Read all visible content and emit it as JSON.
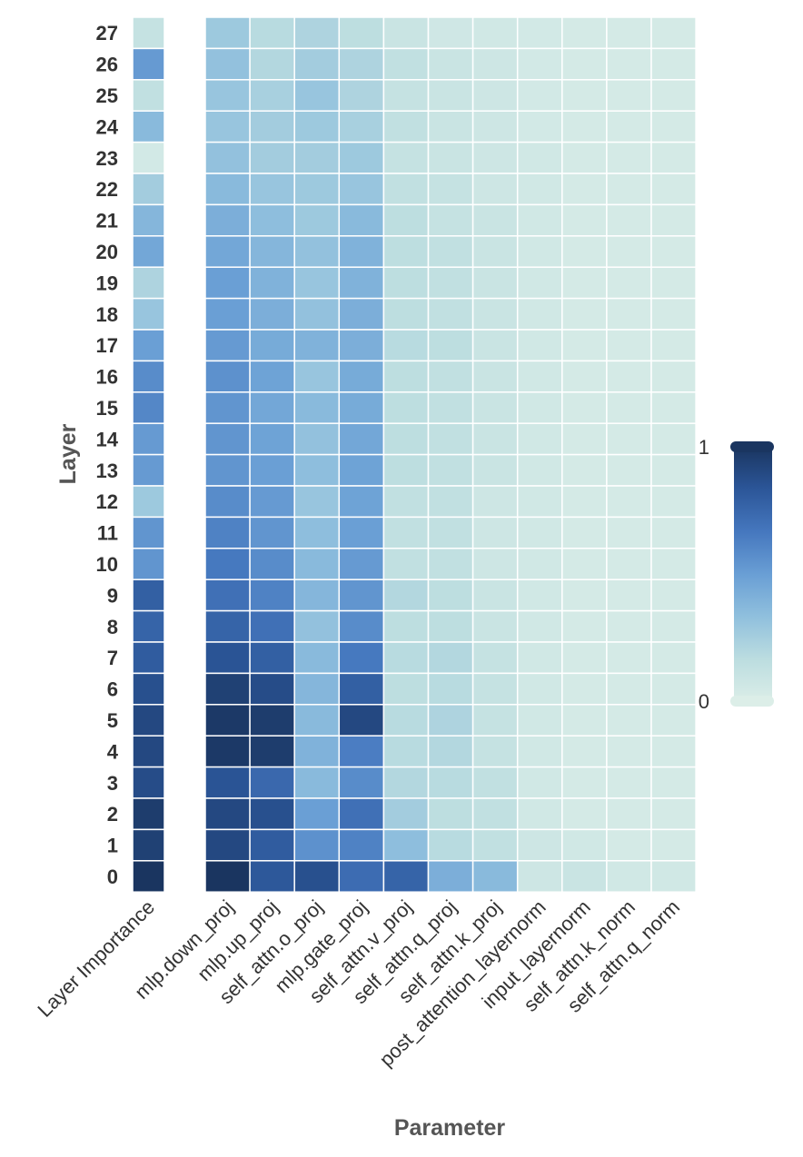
{
  "chart_data": {
    "type": "heatmap",
    "xlabel": "Parameter",
    "ylabel": "Layer",
    "layers": [
      "27",
      "26",
      "25",
      "24",
      "23",
      "22",
      "21",
      "20",
      "19",
      "18",
      "17",
      "16",
      "15",
      "14",
      "13",
      "12",
      "11",
      "10",
      "9",
      "8",
      "7",
      "6",
      "5",
      "4",
      "3",
      "2",
      "1",
      "0"
    ],
    "importance_label": "Layer Importance",
    "importance": [
      0.12,
      0.52,
      0.14,
      0.36,
      0.05,
      0.26,
      0.38,
      0.46,
      0.22,
      0.3,
      0.5,
      0.58,
      0.6,
      0.52,
      0.52,
      0.28,
      0.54,
      0.54,
      0.78,
      0.76,
      0.8,
      0.86,
      0.9,
      0.9,
      0.88,
      0.96,
      0.94,
      1.0
    ],
    "parameters": [
      "mlp.down_proj",
      "mlp.up_proj",
      "self_attn.o_proj",
      "mlp.gate_proj",
      "self_attn.v_proj",
      "self_attn.q_proj",
      "self_attn.k_proj",
      "post_attention_layernorm",
      "input_layernorm",
      "self_attn.k_norm",
      "self_attn.q_norm"
    ],
    "values": [
      [
        0.28,
        0.18,
        0.22,
        0.16,
        0.1,
        0.07,
        0.06,
        0.05,
        0.04,
        0.04,
        0.04
      ],
      [
        0.32,
        0.2,
        0.26,
        0.22,
        0.14,
        0.1,
        0.08,
        0.05,
        0.04,
        0.04,
        0.04
      ],
      [
        0.3,
        0.24,
        0.3,
        0.22,
        0.12,
        0.1,
        0.08,
        0.05,
        0.04,
        0.04,
        0.04
      ],
      [
        0.3,
        0.26,
        0.28,
        0.24,
        0.14,
        0.1,
        0.08,
        0.05,
        0.04,
        0.04,
        0.04
      ],
      [
        0.32,
        0.26,
        0.26,
        0.28,
        0.12,
        0.1,
        0.08,
        0.06,
        0.04,
        0.04,
        0.04
      ],
      [
        0.36,
        0.3,
        0.28,
        0.3,
        0.14,
        0.12,
        0.08,
        0.06,
        0.04,
        0.04,
        0.04
      ],
      [
        0.42,
        0.34,
        0.28,
        0.36,
        0.16,
        0.12,
        0.1,
        0.06,
        0.04,
        0.04,
        0.04
      ],
      [
        0.46,
        0.38,
        0.32,
        0.4,
        0.16,
        0.14,
        0.1,
        0.06,
        0.04,
        0.04,
        0.04
      ],
      [
        0.5,
        0.4,
        0.3,
        0.4,
        0.16,
        0.14,
        0.1,
        0.06,
        0.04,
        0.04,
        0.04
      ],
      [
        0.5,
        0.42,
        0.32,
        0.42,
        0.16,
        0.14,
        0.1,
        0.06,
        0.04,
        0.04,
        0.04
      ],
      [
        0.52,
        0.44,
        0.4,
        0.42,
        0.18,
        0.16,
        0.1,
        0.06,
        0.04,
        0.04,
        0.04
      ],
      [
        0.56,
        0.48,
        0.3,
        0.44,
        0.16,
        0.14,
        0.1,
        0.06,
        0.04,
        0.04,
        0.04
      ],
      [
        0.54,
        0.46,
        0.36,
        0.44,
        0.16,
        0.14,
        0.1,
        0.06,
        0.04,
        0.04,
        0.04
      ],
      [
        0.54,
        0.48,
        0.32,
        0.46,
        0.16,
        0.14,
        0.1,
        0.06,
        0.04,
        0.04,
        0.04
      ],
      [
        0.54,
        0.5,
        0.34,
        0.48,
        0.16,
        0.14,
        0.1,
        0.06,
        0.04,
        0.04,
        0.04
      ],
      [
        0.58,
        0.52,
        0.3,
        0.48,
        0.14,
        0.14,
        0.08,
        0.06,
        0.04,
        0.04,
        0.04
      ],
      [
        0.62,
        0.54,
        0.34,
        0.5,
        0.14,
        0.14,
        0.08,
        0.06,
        0.04,
        0.04,
        0.04
      ],
      [
        0.66,
        0.58,
        0.36,
        0.52,
        0.14,
        0.14,
        0.08,
        0.06,
        0.04,
        0.04,
        0.04
      ],
      [
        0.7,
        0.62,
        0.38,
        0.54,
        0.2,
        0.16,
        0.1,
        0.06,
        0.04,
        0.04,
        0.04
      ],
      [
        0.76,
        0.7,
        0.32,
        0.58,
        0.16,
        0.16,
        0.1,
        0.06,
        0.04,
        0.04,
        0.04
      ],
      [
        0.84,
        0.78,
        0.36,
        0.66,
        0.18,
        0.2,
        0.12,
        0.06,
        0.04,
        0.04,
        0.04
      ],
      [
        0.94,
        0.88,
        0.38,
        0.78,
        0.16,
        0.18,
        0.12,
        0.06,
        0.04,
        0.04,
        0.04
      ],
      [
        0.98,
        0.96,
        0.36,
        0.9,
        0.18,
        0.22,
        0.12,
        0.06,
        0.04,
        0.04,
        0.04
      ],
      [
        0.98,
        0.96,
        0.4,
        0.64,
        0.18,
        0.2,
        0.12,
        0.06,
        0.04,
        0.04,
        0.04
      ],
      [
        0.84,
        0.74,
        0.36,
        0.58,
        0.2,
        0.18,
        0.14,
        0.06,
        0.04,
        0.04,
        0.04
      ],
      [
        0.9,
        0.86,
        0.5,
        0.7,
        0.26,
        0.16,
        0.14,
        0.06,
        0.04,
        0.04,
        0.04
      ],
      [
        0.9,
        0.8,
        0.56,
        0.62,
        0.34,
        0.18,
        0.14,
        0.08,
        0.06,
        0.04,
        0.04
      ],
      [
        1.0,
        0.82,
        0.86,
        0.72,
        0.76,
        0.42,
        0.36,
        0.08,
        0.1,
        0.06,
        0.06
      ]
    ],
    "colorbar": {
      "max_label": "1",
      "min_label": "0",
      "range": [
        0,
        1
      ]
    },
    "colors": [
      "#dceee8",
      "#bcdde0",
      "#8fbfdd",
      "#6a9fd5",
      "#4577be",
      "#2b5597",
      "#1a3560"
    ]
  }
}
